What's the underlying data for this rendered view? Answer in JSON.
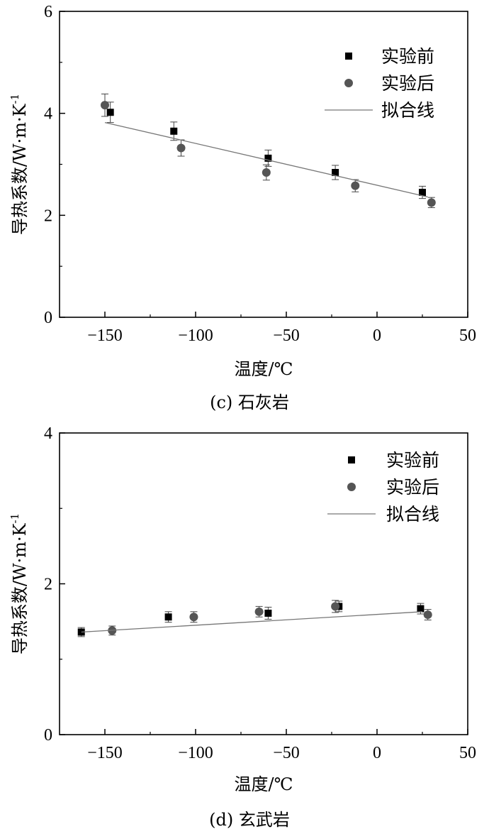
{
  "chart_data": [
    {
      "type": "scatter",
      "caption": "(c) 石灰岩",
      "title": "",
      "xlabel": "温度/℃",
      "ylabel": "导热系数/W·m·K",
      "ylabel_exponent": "-1",
      "xlim": [
        -175,
        50
      ],
      "ylim": [
        0,
        6
      ],
      "xticks": [
        -150,
        -100,
        -50,
        0,
        50
      ],
      "xtick_labels": [
        "−150",
        "−100",
        "−50",
        "0",
        "50"
      ],
      "yticks": [
        0,
        2,
        4,
        6
      ],
      "ytick_labels": [
        "0",
        "2",
        "4",
        "6"
      ],
      "legend": [
        "实验前",
        "实验后",
        "拟合线"
      ],
      "series": [
        {
          "name": "实验前",
          "marker": "square",
          "color": "#000000",
          "x": [
            -147,
            -112,
            -60,
            -23,
            25
          ],
          "y": [
            4.02,
            3.65,
            3.12,
            2.84,
            2.45
          ],
          "err": [
            0.2,
            0.18,
            0.16,
            0.14,
            0.12
          ]
        },
        {
          "name": "实验后",
          "marker": "circle",
          "color": "#555555",
          "x": [
            -150,
            -108,
            -61,
            -12,
            30
          ],
          "y": [
            4.16,
            3.32,
            2.84,
            2.58,
            2.25
          ],
          "err": [
            0.22,
            0.16,
            0.15,
            0.12,
            0.1
          ]
        },
        {
          "name": "拟合线",
          "type": "line",
          "color": "#777777",
          "x": [
            -150,
            28
          ],
          "y": [
            3.82,
            2.36
          ]
        }
      ]
    },
    {
      "type": "scatter",
      "caption": "(d) 玄武岩",
      "title": "",
      "xlabel": "温度/℃",
      "ylabel": "导热系数/W·m·K",
      "ylabel_exponent": "-1",
      "xlim": [
        -175,
        50
      ],
      "ylim": [
        0,
        4
      ],
      "xticks": [
        -150,
        -100,
        -50,
        0,
        50
      ],
      "xtick_labels": [
        "−150",
        "−100",
        "−50",
        "0",
        "50"
      ],
      "yticks": [
        0,
        2,
        4
      ],
      "ytick_labels": [
        "0",
        "2",
        "4"
      ],
      "legend": [
        "实验前",
        "实验后",
        "拟合线"
      ],
      "series": [
        {
          "name": "实验前",
          "marker": "square",
          "color": "#000000",
          "x": [
            -163,
            -115,
            -60,
            -21,
            24
          ],
          "y": [
            1.36,
            1.56,
            1.61,
            1.7,
            1.67
          ],
          "err": [
            0.06,
            0.07,
            0.08,
            0.07,
            0.07
          ]
        },
        {
          "name": "实验后",
          "marker": "circle",
          "color": "#555555",
          "x": [
            -146,
            -101,
            -65,
            -23,
            28
          ],
          "y": [
            1.38,
            1.56,
            1.63,
            1.7,
            1.59
          ],
          "err": [
            0.06,
            0.07,
            0.07,
            0.08,
            0.07
          ]
        },
        {
          "name": "拟合线",
          "type": "line",
          "color": "#777777",
          "x": [
            -163,
            25
          ],
          "y": [
            1.36,
            1.63
          ]
        }
      ]
    }
  ]
}
